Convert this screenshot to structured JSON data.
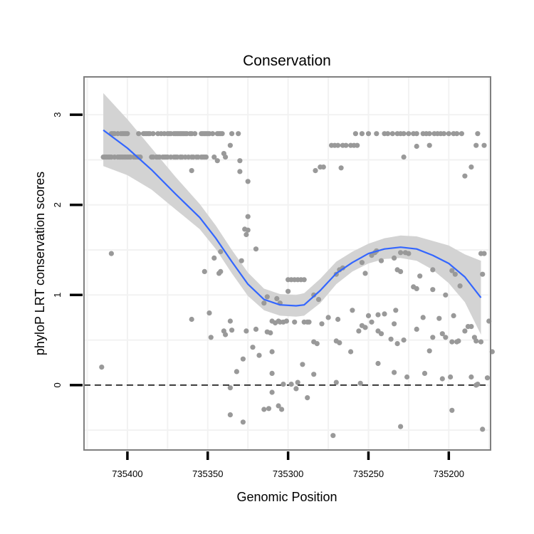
{
  "chart_data": {
    "type": "scatter",
    "title": "Conservation",
    "xlabel": "Genomic Position",
    "ylabel": "phyloP LRT conservation scores",
    "xlim": [
      735174,
      735427
    ],
    "x_reversed": true,
    "ylim": [
      -0.72,
      3.42
    ],
    "x_ticks": [
      735400,
      735350,
      735300,
      735250,
      735200
    ],
    "x_tick_labels": [
      "735400",
      "735350",
      "735300",
      "735250",
      "735200"
    ],
    "y_ticks": [
      0,
      1,
      2,
      3
    ],
    "y_tick_labels": [
      "0",
      "1",
      "2",
      "3"
    ],
    "grid": true,
    "reference_line": {
      "y": 0,
      "style": "dashed"
    },
    "colors": {
      "points": "#999999",
      "smooth_line": "#3366ff",
      "ribbon": "#d3d3d3",
      "panel_border": "#7f7f7f",
      "grid": "#f2f2f2"
    },
    "smooth": {
      "x": [
        735415,
        735400,
        735385,
        735370,
        735355,
        735345,
        735335,
        735325,
        735315,
        735305,
        735295,
        735290,
        735280,
        735270,
        735260,
        735250,
        735240,
        735230,
        735220,
        735210,
        735200,
        735190,
        735180
      ],
      "y": [
        2.83,
        2.63,
        2.39,
        2.12,
        1.86,
        1.63,
        1.37,
        1.12,
        0.95,
        0.89,
        0.88,
        0.89,
        1.05,
        1.24,
        1.36,
        1.46,
        1.51,
        1.53,
        1.51,
        1.44,
        1.35,
        1.2,
        0.97
      ],
      "lower": [
        2.43,
        2.33,
        2.17,
        1.95,
        1.73,
        1.51,
        1.24,
        0.99,
        0.83,
        0.77,
        0.76,
        0.77,
        0.91,
        1.12,
        1.26,
        1.35,
        1.4,
        1.41,
        1.38,
        1.28,
        1.13,
        0.92,
        0.56
      ],
      "upper": [
        3.24,
        2.95,
        2.63,
        2.31,
        2.01,
        1.77,
        1.5,
        1.25,
        1.07,
        1.01,
        1.0,
        1.02,
        1.18,
        1.37,
        1.48,
        1.57,
        1.63,
        1.66,
        1.65,
        1.6,
        1.55,
        1.45,
        1.38
      ]
    },
    "points": [
      [
        735415,
        2.53
      ],
      [
        735414,
        2.53
      ],
      [
        735413,
        2.53
      ],
      [
        735412,
        2.53
      ],
      [
        735411,
        2.53
      ],
      [
        735410,
        2.53
      ],
      [
        735408,
        2.53
      ],
      [
        735406,
        2.53
      ],
      [
        735405,
        2.53
      ],
      [
        735404,
        2.53
      ],
      [
        735403,
        2.53
      ],
      [
        735402,
        2.53
      ],
      [
        735401,
        2.53
      ],
      [
        735400,
        2.53
      ],
      [
        735399,
        2.53
      ],
      [
        735398,
        2.53
      ],
      [
        735396,
        2.53
      ],
      [
        735395,
        2.53
      ],
      [
        735394,
        2.53
      ],
      [
        735393,
        2.53
      ],
      [
        735392,
        2.53
      ],
      [
        735385,
        2.53
      ],
      [
        735384,
        2.53
      ],
      [
        735382,
        2.53
      ],
      [
        735381,
        2.53
      ],
      [
        735380,
        2.53
      ],
      [
        735378,
        2.53
      ],
      [
        735377,
        2.53
      ],
      [
        735376,
        2.53
      ],
      [
        735375,
        2.53
      ],
      [
        735373,
        2.53
      ],
      [
        735371,
        2.53
      ],
      [
        735370,
        2.53
      ],
      [
        735369,
        2.53
      ],
      [
        735367,
        2.53
      ],
      [
        735366,
        2.53
      ],
      [
        735364,
        2.53
      ],
      [
        735362,
        2.53
      ],
      [
        735360,
        2.53
      ],
      [
        735359,
        2.53
      ],
      [
        735357,
        2.53
      ],
      [
        735356,
        2.53
      ],
      [
        735354,
        2.53
      ],
      [
        735353,
        2.53
      ],
      [
        735352,
        2.53
      ],
      [
        735351,
        2.53
      ],
      [
        735346,
        2.53
      ],
      [
        735410,
        2.79
      ],
      [
        735409,
        2.79
      ],
      [
        735408,
        2.79
      ],
      [
        735406,
        2.79
      ],
      [
        735404,
        2.79
      ],
      [
        735403,
        2.79
      ],
      [
        735402,
        2.79
      ],
      [
        735401,
        2.79
      ],
      [
        735400,
        2.79
      ],
      [
        735393,
        2.79
      ],
      [
        735390,
        2.79
      ],
      [
        735389,
        2.79
      ],
      [
        735388,
        2.79
      ],
      [
        735387,
        2.79
      ],
      [
        735386,
        2.79
      ],
      [
        735384,
        2.79
      ],
      [
        735381,
        2.79
      ],
      [
        735379,
        2.79
      ],
      [
        735377,
        2.79
      ],
      [
        735375,
        2.79
      ],
      [
        735374,
        2.79
      ],
      [
        735373,
        2.79
      ],
      [
        735371,
        2.79
      ],
      [
        735370,
        2.79
      ],
      [
        735369,
        2.79
      ],
      [
        735368,
        2.79
      ],
      [
        735367,
        2.79
      ],
      [
        735366,
        2.79
      ],
      [
        735365,
        2.79
      ],
      [
        735364,
        2.79
      ],
      [
        735363,
        2.79
      ],
      [
        735361,
        2.79
      ],
      [
        735360,
        2.79
      ],
      [
        735358,
        2.79
      ],
      [
        735354,
        2.79
      ],
      [
        735353,
        2.79
      ],
      [
        735352,
        2.79
      ],
      [
        735351,
        2.79
      ],
      [
        735350,
        2.79
      ],
      [
        735349,
        2.79
      ],
      [
        735347,
        2.79
      ],
      [
        735344,
        2.79
      ],
      [
        735343,
        2.79
      ],
      [
        735342,
        2.79
      ],
      [
        735341,
        2.79
      ],
      [
        735335,
        2.79
      ],
      [
        735331,
        2.79
      ],
      [
        735273,
        2.66
      ],
      [
        735271,
        2.66
      ],
      [
        735269,
        2.66
      ],
      [
        735266,
        2.66
      ],
      [
        735264,
        2.66
      ],
      [
        735261,
        2.66
      ],
      [
        735259,
        2.66
      ],
      [
        735257,
        2.66
      ],
      [
        735212,
        2.66
      ],
      [
        735178,
        2.66
      ],
      [
        735258,
        2.79
      ],
      [
        735254,
        2.79
      ],
      [
        735250,
        2.79
      ],
      [
        735245,
        2.79
      ],
      [
        735240,
        2.79
      ],
      [
        735238,
        2.79
      ],
      [
        735235,
        2.79
      ],
      [
        735232,
        2.79
      ],
      [
        735230,
        2.79
      ],
      [
        735228,
        2.79
      ],
      [
        735225,
        2.79
      ],
      [
        735222,
        2.79
      ],
      [
        735220,
        2.79
      ],
      [
        735216,
        2.79
      ],
      [
        735214,
        2.79
      ],
      [
        735212,
        2.79
      ],
      [
        735209,
        2.79
      ],
      [
        735207,
        2.79
      ],
      [
        735205,
        2.79
      ],
      [
        735203,
        2.79
      ],
      [
        735200,
        2.79
      ],
      [
        735197,
        2.79
      ],
      [
        735195,
        2.79
      ],
      [
        735192,
        2.79
      ],
      [
        735182,
        2.79
      ],
      [
        735336,
        2.66
      ],
      [
        735340,
        2.57
      ],
      [
        735339,
        2.53
      ],
      [
        735330,
        2.49
      ],
      [
        735330,
        2.37
      ],
      [
        735344,
        2.49
      ],
      [
        735360,
        2.38
      ],
      [
        735325,
        2.26
      ],
      [
        735283,
        2.38
      ],
      [
        735280,
        2.42
      ],
      [
        735278,
        2.42
      ],
      [
        735267,
        2.41
      ],
      [
        735228,
        2.53
      ],
      [
        735220,
        2.65
      ],
      [
        735190,
        2.32
      ],
      [
        735186,
        2.42
      ],
      [
        735183,
        2.66
      ],
      [
        735325,
        1.87
      ],
      [
        735327,
        1.73
      ],
      [
        735325,
        1.72
      ],
      [
        735326,
        1.67
      ],
      [
        735320,
        1.51
      ],
      [
        735342,
        1.48
      ],
      [
        735329,
        1.38
      ],
      [
        735346,
        1.41
      ],
      [
        735352,
        1.26
      ],
      [
        735343,
        1.24
      ],
      [
        735342,
        1.26
      ],
      [
        735410,
        1.46
      ],
      [
        735300,
        1.17
      ],
      [
        735298,
        1.17
      ],
      [
        735296,
        1.17
      ],
      [
        735294,
        1.17
      ],
      [
        735292,
        1.17
      ],
      [
        735290,
        1.17
      ],
      [
        735300,
        1.04
      ],
      [
        735284,
        1.0
      ],
      [
        735315,
        0.91
      ],
      [
        735313,
        0.98
      ],
      [
        735307,
        0.96
      ],
      [
        735305,
        0.91
      ],
      [
        735281,
        0.95
      ],
      [
        735310,
        0.71
      ],
      [
        735308,
        0.69
      ],
      [
        735306,
        0.71
      ],
      [
        735305,
        0.7
      ],
      [
        735303,
        0.7
      ],
      [
        735301,
        0.71
      ],
      [
        735296,
        0.7
      ],
      [
        735290,
        0.7
      ],
      [
        735288,
        0.7
      ],
      [
        735287,
        0.7
      ],
      [
        735268,
        1.28
      ],
      [
        735266,
        1.3
      ],
      [
        735270,
        1.23
      ],
      [
        735254,
        1.36
      ],
      [
        735248,
        1.44
      ],
      [
        735245,
        1.49
      ],
      [
        735252,
        1.24
      ],
      [
        735246,
        1.47
      ],
      [
        735242,
        1.38
      ],
      [
        735234,
        1.41
      ],
      [
        735230,
        1.47
      ],
      [
        735227,
        1.47
      ],
      [
        735218,
        1.21
      ],
      [
        735210,
        1.28
      ],
      [
        735202,
        1.0
      ],
      [
        735198,
        1.27
      ],
      [
        735196,
        1.23
      ],
      [
        735193,
        1.1
      ],
      [
        735180,
        1.46
      ],
      [
        735178,
        1.46
      ],
      [
        735179,
        1.23
      ],
      [
        735232,
        1.28
      ],
      [
        735225,
        1.46
      ],
      [
        735230,
        1.26
      ],
      [
        735222,
        1.09
      ],
      [
        735220,
        1.07
      ],
      [
        735210,
        1.06
      ],
      [
        735275,
        0.75
      ],
      [
        735279,
        0.68
      ],
      [
        735269,
        0.73
      ],
      [
        735260,
        0.83
      ],
      [
        735270,
        0.49
      ],
      [
        735268,
        0.47
      ],
      [
        735254,
        0.66
      ],
      [
        735252,
        0.64
      ],
      [
        735250,
        0.77
      ],
      [
        735244,
        0.6
      ],
      [
        735240,
        0.79
      ],
      [
        735232,
        0.46
      ],
      [
        735228,
        0.5
      ],
      [
        735234,
        0.68
      ],
      [
        735220,
        0.62
      ],
      [
        735216,
        0.75
      ],
      [
        735210,
        0.53
      ],
      [
        735206,
        0.74
      ],
      [
        735204,
        0.57
      ],
      [
        735202,
        0.53
      ],
      [
        735197,
        0.77
      ],
      [
        735190,
        0.6
      ],
      [
        735186,
        0.65
      ],
      [
        735184,
        0.53
      ],
      [
        735180,
        0.48
      ],
      [
        735183,
        0.49
      ],
      [
        735195,
        0.48
      ],
      [
        735198,
        0.48
      ],
      [
        735194,
        0.49
      ],
      [
        735188,
        0.65
      ],
      [
        735175,
        0.71
      ],
      [
        735173,
        0.37
      ],
      [
        735233,
        0.83
      ],
      [
        735236,
        0.51
      ],
      [
        735244,
        0.78
      ],
      [
        735248,
        0.7
      ],
      [
        735256,
        0.6
      ],
      [
        735261,
        0.37
      ],
      [
        735242,
        0.57
      ],
      [
        735360,
        0.73
      ],
      [
        735349,
        0.8
      ],
      [
        735348,
        0.53
      ],
      [
        735340,
        0.6
      ],
      [
        735339,
        0.56
      ],
      [
        735336,
        0.71
      ],
      [
        735335,
        0.61
      ],
      [
        735326,
        0.6
      ],
      [
        735320,
        0.62
      ],
      [
        735322,
        0.42
      ],
      [
        735318,
        0.33
      ],
      [
        735313,
        0.59
      ],
      [
        735311,
        0.58
      ],
      [
        735328,
        0.29
      ],
      [
        735332,
        0.15
      ],
      [
        735310,
        0.37
      ],
      [
        735284,
        0.48
      ],
      [
        735282,
        0.46
      ],
      [
        735416,
        0.2
      ],
      [
        735336,
        -0.03
      ],
      [
        735310,
        0.13
      ],
      [
        735303,
        0.01
      ],
      [
        735298,
        0.01
      ],
      [
        735294,
        0.03
      ],
      [
        735291,
        0.23
      ],
      [
        735284,
        0.12
      ],
      [
        735270,
        0.03
      ],
      [
        735255,
        0.02
      ],
      [
        735244,
        0.24
      ],
      [
        735234,
        0.14
      ],
      [
        735226,
        0.09
      ],
      [
        735212,
        0.38
      ],
      [
        735204,
        0.07
      ],
      [
        735199,
        0.09
      ],
      [
        735186,
        0.09
      ],
      [
        735183,
        0.0
      ],
      [
        735182,
        0.01
      ],
      [
        735176,
        0.08
      ],
      [
        735215,
        0.13
      ],
      [
        735336,
        -0.33
      ],
      [
        735328,
        -0.41
      ],
      [
        735315,
        -0.27
      ],
      [
        735312,
        -0.26
      ],
      [
        735310,
        -0.08
      ],
      [
        735306,
        -0.23
      ],
      [
        735304,
        -0.27
      ],
      [
        735295,
        -0.04
      ],
      [
        735288,
        -0.14
      ],
      [
        735272,
        -0.56
      ],
      [
        735230,
        -0.46
      ],
      [
        735198,
        -0.28
      ],
      [
        735179,
        -0.49
      ]
    ]
  }
}
